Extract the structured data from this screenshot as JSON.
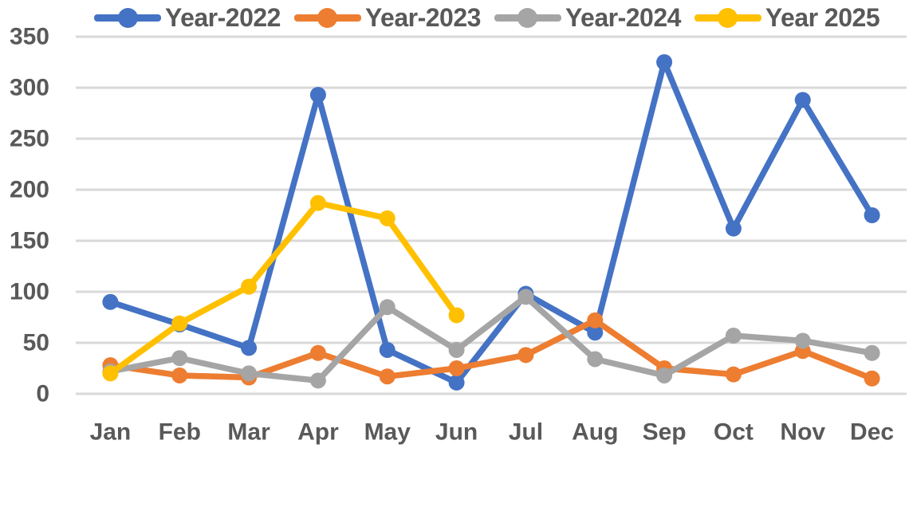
{
  "chart_data": {
    "type": "line",
    "title": "",
    "xlabel": "",
    "ylabel": "",
    "categories": [
      "Jan",
      "Feb",
      "Mar",
      "Apr",
      "May",
      "Jun",
      "Jul",
      "Aug",
      "Sep",
      "Oct",
      "Nov",
      "Dec"
    ],
    "series": [
      {
        "name": "Year-2022",
        "color": "#4472C4",
        "values": [
          90,
          68,
          45,
          293,
          43,
          11,
          98,
          60,
          325,
          162,
          288,
          175
        ]
      },
      {
        "name": "Year-2023",
        "color": "#ED7D31",
        "values": [
          28,
          18,
          16,
          40,
          17,
          25,
          38,
          72,
          25,
          19,
          42,
          15
        ]
      },
      {
        "name": "Year-2024",
        "color": "#A5A5A5",
        "values": [
          22,
          35,
          20,
          13,
          85,
          43,
          95,
          34,
          18,
          57,
          52,
          40
        ]
      },
      {
        "name": "Year 2025",
        "color": "#FFC000",
        "values": [
          20,
          69,
          105,
          187,
          172,
          77,
          null,
          null,
          null,
          null,
          null,
          null
        ]
      }
    ],
    "ylim": [
      0,
      350
    ],
    "yticks": [
      0,
      50,
      100,
      150,
      200,
      250,
      300,
      350
    ],
    "ytick_step": 50,
    "grid": true,
    "gridline_color": "#D9D9D9",
    "axis_text_color": "#595959",
    "legend_position": "top"
  }
}
